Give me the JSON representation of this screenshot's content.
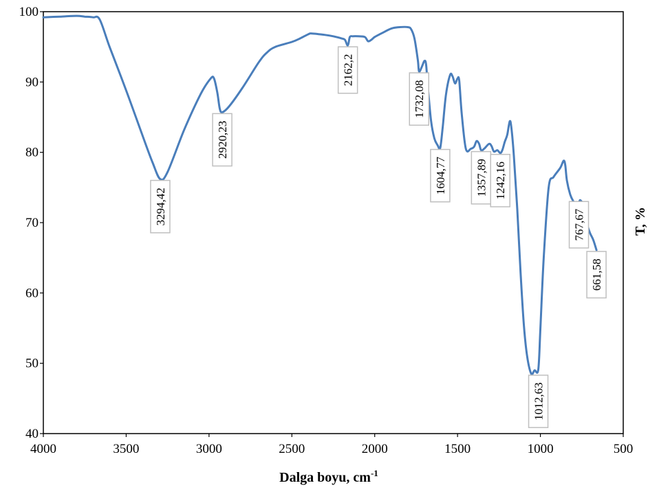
{
  "chart_data": {
    "type": "line",
    "title": "",
    "xlabel": "Dalga boyu, cm",
    "xlabel_sup": "-1",
    "ylabel": "T, %",
    "xlim": [
      4000,
      500
    ],
    "ylim": [
      40,
      100
    ],
    "x_reversed": true,
    "xticks": [
      4000,
      3500,
      3000,
      2500,
      2000,
      1500,
      1000,
      500
    ],
    "yticks": [
      40,
      50,
      60,
      70,
      80,
      90,
      100
    ],
    "grid": false,
    "legend": "none",
    "line_color": "#4a7ebb",
    "series": [
      {
        "x": [
          4000,
          3900,
          3800,
          3750,
          3700,
          3660,
          3600,
          3500,
          3400,
          3340,
          3294.42,
          3250,
          3150,
          3050,
          2990,
          2970,
          2950,
          2935,
          2920.23,
          2880,
          2800,
          2700,
          2650,
          2600,
          2500,
          2450,
          2400,
          2380,
          2300,
          2250,
          2200,
          2180,
          2162.2,
          2150,
          2130,
          2100,
          2060,
          2040,
          2020,
          2000,
          1960,
          1900,
          1850,
          1800,
          1780,
          1760,
          1740,
          1732.08,
          1715,
          1700,
          1690,
          1680,
          1660,
          1640,
          1620,
          1604.77,
          1590,
          1570,
          1545,
          1530,
          1515,
          1500,
          1490,
          1475,
          1450,
          1420,
          1400,
          1385,
          1370,
          1357.89,
          1340,
          1310,
          1295,
          1280,
          1260,
          1242.16,
          1230,
          1215,
          1200,
          1185,
          1175,
          1160,
          1140,
          1120,
          1100,
          1080,
          1055,
          1035,
          1012.63,
          1000,
          980,
          950,
          920,
          880,
          860,
          850,
          840,
          820,
          800,
          780,
          767.67,
          760,
          745,
          730,
          715,
          700,
          680,
          661.58
        ],
        "y": [
          99.2,
          99.3,
          99.4,
          99.3,
          99.2,
          98.9,
          95,
          88.8,
          82.3,
          78.5,
          76.2,
          77.2,
          83.2,
          88.3,
          90.5,
          90.5,
          88.5,
          86.2,
          85.7,
          86.5,
          89.1,
          92.8,
          94.2,
          95,
          95.7,
          96.2,
          96.8,
          96.9,
          96.7,
          96.5,
          96.2,
          96,
          95.2,
          96.4,
          96.5,
          96.5,
          96.4,
          95.8,
          96,
          96.4,
          96.9,
          97.6,
          97.8,
          97.8,
          97.5,
          96.2,
          93.2,
          91.5,
          92.2,
          93,
          92.5,
          89.5,
          84.5,
          82,
          81,
          80.6,
          83.5,
          88.2,
          91,
          90.8,
          89.8,
          90.5,
          90.2,
          85.5,
          80.5,
          80.5,
          80.8,
          81.6,
          81.2,
          80.3,
          80.5,
          81.2,
          80.9,
          80.1,
          80.3,
          79.9,
          80.3,
          81.5,
          82.5,
          84.4,
          83.5,
          79.5,
          72,
          63,
          55.5,
          51,
          48.5,
          49,
          49.1,
          55,
          65,
          75,
          76.5,
          77.8,
          78.8,
          78.2,
          76,
          74,
          73,
          72.4,
          72.8,
          73.2,
          72.6,
          70.5,
          69.5,
          68.5,
          67.5,
          66.1
        ]
      }
    ],
    "annotations": [
      {
        "text": "3294,42",
        "x": 3294.42,
        "y": 76.2
      },
      {
        "text": "2920,23",
        "x": 2920.23,
        "y": 85.7
      },
      {
        "text": "2162,2",
        "x": 2162.2,
        "y": 95.2
      },
      {
        "text": "1732,08",
        "x": 1732.08,
        "y": 91.5
      },
      {
        "text": "1604,77",
        "x": 1604.77,
        "y": 80.6
      },
      {
        "text": "1357,89",
        "x": 1357.89,
        "y": 80.3
      },
      {
        "text": "1242,16",
        "x": 1242.16,
        "y": 79.9
      },
      {
        "text": "1012,63",
        "x": 1012.63,
        "y": 48.5
      },
      {
        "text": "767,67",
        "x": 767.67,
        "y": 73.2
      },
      {
        "text": "661,58",
        "x": 661.58,
        "y": 66.1
      }
    ]
  }
}
